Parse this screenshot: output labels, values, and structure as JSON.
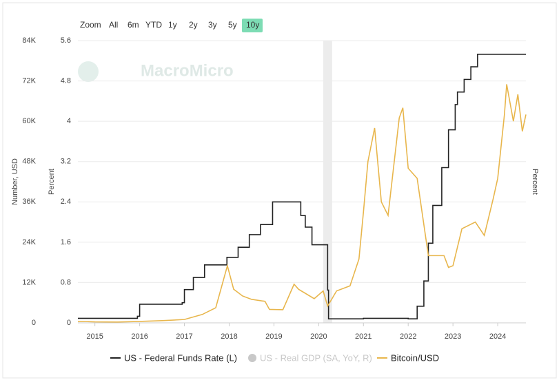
{
  "chart_data": {
    "type": "line",
    "watermark": "MacroMicro",
    "range_selector": {
      "label": "Zoom",
      "buttons": [
        "All",
        "6m",
        "YTD",
        "1y",
        "2y",
        "3y",
        "5y",
        "10y"
      ],
      "active": 7,
      "active_color": "#7ddcb4"
    },
    "ylabel": "Number, USD",
    "y2label": "Percent",
    "y3label": "Percent",
    "xlim": [
      2014.62,
      2024.63
    ],
    "xticks": [
      2015,
      2016,
      2017,
      2018,
      2019,
      2020,
      2021,
      2022,
      2023,
      2024
    ],
    "ylim": [
      0,
      84000
    ],
    "yticks": [
      0,
      {
        "value": 12000,
        "label": "12K"
      },
      {
        "value": 24000,
        "label": "24K"
      },
      {
        "value": 36000,
        "label": "36K"
      },
      {
        "value": 48000,
        "label": "48K"
      },
      {
        "value": 60000,
        "label": "60K"
      },
      {
        "value": 72000,
        "label": "72K"
      },
      {
        "value": 84000,
        "label": "84K"
      }
    ],
    "y2lim": [
      0,
      5.6
    ],
    "y2ticks": [
      0,
      0.8,
      1.6,
      2.4,
      3.2,
      4,
      4.8,
      5.6
    ],
    "grid": true,
    "bands": [
      {
        "from": 2020.1,
        "to": 2020.3,
        "color": "#ececec"
      }
    ],
    "series": [
      {
        "name": "US - Federal Funds Rate (L)",
        "color": "#222222",
        "axis": "y2",
        "step": true,
        "x": [
          2014.62,
          2015.95,
          2016.0,
          2016.95,
          2017.0,
          2017.2,
          2017.45,
          2017.95,
          2018.2,
          2018.45,
          2018.7,
          2018.97,
          2019.55,
          2019.6,
          2019.7,
          2019.85,
          2020.17,
          2020.2,
          2020.22,
          2021.0,
          2022.0,
          2022.2,
          2022.35,
          2022.45,
          2022.55,
          2022.75,
          2022.9,
          2023.05,
          2023.1,
          2023.25,
          2023.4,
          2023.55,
          2024.63
        ],
        "values": [
          0.09,
          0.13,
          0.37,
          0.4,
          0.66,
          0.9,
          1.15,
          1.3,
          1.5,
          1.75,
          1.95,
          2.4,
          2.4,
          2.13,
          1.9,
          1.55,
          1.55,
          0.65,
          0.08,
          0.09,
          0.08,
          0.33,
          0.83,
          1.58,
          2.33,
          3.08,
          3.83,
          4.33,
          4.58,
          4.83,
          5.08,
          5.33,
          5.33
        ]
      },
      {
        "name": "US - Real GDP (SA, YoY, R)",
        "color": "#c8c8c8",
        "axis": "y3",
        "hidden": true,
        "x": [],
        "values": []
      },
      {
        "name": "Bitcoin/USD",
        "color": "#e8b64c",
        "axis": "y",
        "x": [
          2014.62,
          2015.0,
          2015.5,
          2016.0,
          2016.5,
          2017.0,
          2017.4,
          2017.7,
          2017.96,
          2018.1,
          2018.3,
          2018.5,
          2018.8,
          2018.9,
          2019.2,
          2019.45,
          2019.55,
          2019.9,
          2020.1,
          2020.2,
          2020.4,
          2020.7,
          2020.9,
          2021.0,
          2021.1,
          2021.25,
          2021.4,
          2021.55,
          2021.8,
          2021.88,
          2022.0,
          2022.2,
          2022.45,
          2022.8,
          2022.9,
          2023.0,
          2023.2,
          2023.5,
          2023.7,
          2023.9,
          2024.0,
          2024.15,
          2024.2,
          2024.35,
          2024.45,
          2024.55,
          2024.63
        ],
        "values": [
          450,
          300,
          250,
          430,
          650,
          1000,
          2500,
          4500,
          17000,
          10000,
          8000,
          7000,
          6400,
          4000,
          3900,
          11500,
          10000,
          7200,
          9500,
          5000,
          9500,
          11000,
          19000,
          33000,
          48000,
          58000,
          36000,
          32000,
          61000,
          64000,
          46000,
          43000,
          20000,
          20000,
          16500,
          17000,
          28000,
          30000,
          26000,
          37000,
          43000,
          62000,
          71000,
          60000,
          68000,
          57000,
          62000
        ]
      }
    ]
  }
}
